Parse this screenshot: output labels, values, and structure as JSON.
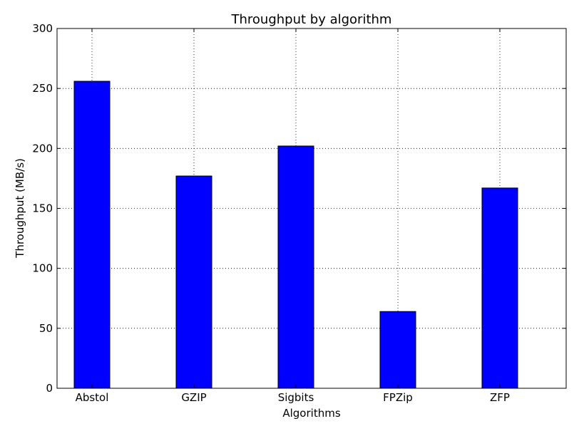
{
  "chart_data": {
    "type": "bar",
    "title": "Throughput by algorithm",
    "xlabel": "Algorithms",
    "ylabel": "Throughput (MB/s)",
    "categories": [
      "Abstol",
      "GZIP",
      "Sigbits",
      "FPZip",
      "ZFP"
    ],
    "values": [
      256,
      177,
      202,
      64,
      167
    ],
    "ylim": [
      0,
      300
    ],
    "yticks": [
      0,
      50,
      100,
      150,
      200,
      250,
      300
    ],
    "grid": true,
    "bar_color": "#0000ff"
  }
}
